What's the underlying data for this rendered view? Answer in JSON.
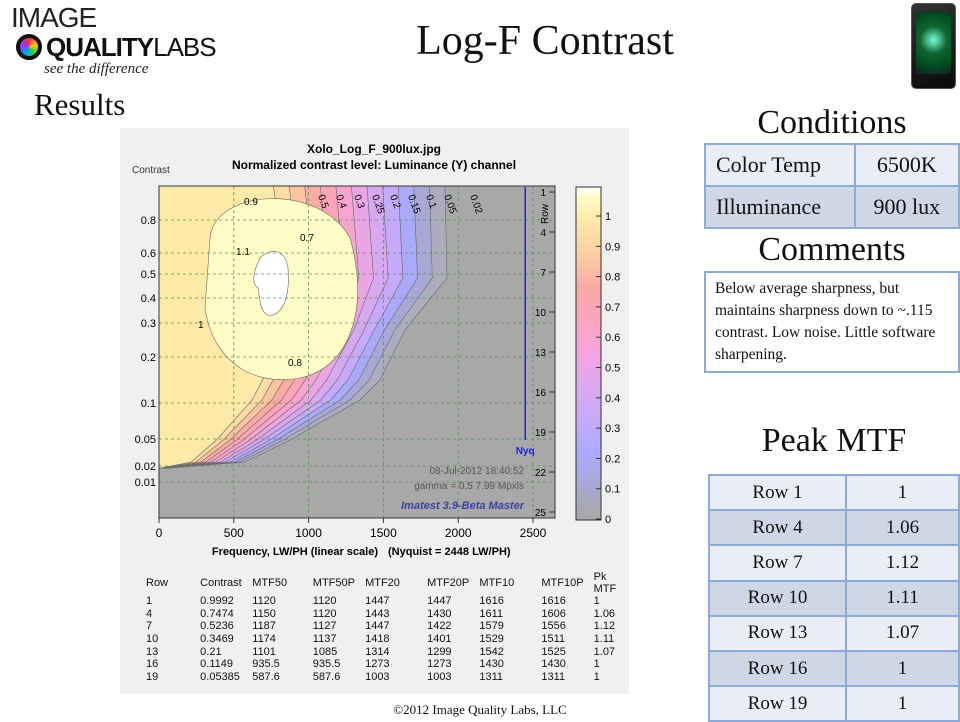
{
  "logo": {
    "line1": "IMAGE",
    "line2a": "QUALITY",
    "line2b": "LABS",
    "tagline": "see the difference"
  },
  "title": "Log-F Contrast",
  "results_heading": "Results",
  "conditions": {
    "heading": "Conditions",
    "rows": [
      {
        "label": "Color Temp",
        "value": "6500K"
      },
      {
        "label": "Illuminance",
        "value": "900 lux"
      }
    ]
  },
  "comments": {
    "heading": "Comments",
    "text": "Below average sharpness, but maintains sharpness down to ~.115 contrast. Low noise. Little software sharpening."
  },
  "peak_mtf": {
    "heading": "Peak MTF",
    "rows": [
      {
        "row": "Row 1",
        "value": "1"
      },
      {
        "row": "Row 4",
        "value": "1.06"
      },
      {
        "row": "Row 7",
        "value": "1.12"
      },
      {
        "row": "Row 10",
        "value": "1.11"
      },
      {
        "row": "Row 13",
        "value": "1.07"
      },
      {
        "row": "Row 16",
        "value": "1"
      },
      {
        "row": "Row 19",
        "value": "1"
      }
    ]
  },
  "footer": "©2012 Image Quality Labs, LLC",
  "chart_data": {
    "type": "heatmap",
    "title": "Xolo_Log_F_900lux.jpg",
    "subtitle": "Normalized contrast level:  Luminance (Y) channel",
    "ylabel": "Contrast",
    "xlabel": "Frequency, LW/PH (linear scale)",
    "xnote": "(Nyquist = 2448 LW/PH)",
    "x_ticks": [
      "0",
      "500",
      "1000",
      "1500",
      "2000",
      "2500"
    ],
    "y_ticks": [
      "0.8",
      "0.6",
      "0.5",
      "0.4",
      "0.3",
      "0.2",
      "0.1",
      "0.05",
      "0.02",
      "0.01"
    ],
    "row_axis_label": "Row",
    "row_ticks": [
      "1",
      "4",
      "7",
      "10",
      "13",
      "16",
      "19",
      "22",
      "25"
    ],
    "nyquist": 2448,
    "nyq_label": "Nyq",
    "colorbar_ticks": [
      "1",
      "0.9",
      "0.8",
      "0.7",
      "0.6",
      "0.5",
      "0.4",
      "0.3",
      "0.2",
      "0.1",
      "0"
    ],
    "contour_labels": [
      "1.1",
      "1",
      "0.9",
      "0.8",
      "0.7",
      "0.5",
      "0.4",
      "0.3",
      "0.25",
      "0.2",
      "0.15",
      "0.1",
      "0.05",
      "0.02"
    ],
    "timestamp": "08-Jul-2012 18:40:52",
    "gamma_info": "gamma = 0.5   7.99 Mpxls",
    "software": "Imatest 3.9-Beta Master",
    "table": {
      "columns": [
        "Row",
        "Contrast",
        "MTF50",
        "MTF50P",
        "MTF20",
        "MTF20P",
        "MTF10",
        "MTF10P",
        "Pk MTF"
      ],
      "rows": [
        [
          "1",
          "0.9992",
          "1120",
          "1120",
          "1447",
          "1447",
          "1616",
          "1616",
          "1"
        ],
        [
          "4",
          "0.7474",
          "1150",
          "1120",
          "1443",
          "1430",
          "1611",
          "1606",
          "1.06"
        ],
        [
          "7",
          "0.5236",
          "1187",
          "1127",
          "1447",
          "1422",
          "1579",
          "1556",
          "1.12"
        ],
        [
          "10",
          "0.3469",
          "1174",
          "1137",
          "1418",
          "1401",
          "1529",
          "1511",
          "1.11"
        ],
        [
          "13",
          "0.21",
          "1101",
          "1085",
          "1314",
          "1299",
          "1542",
          "1525",
          "1.07"
        ],
        [
          "16",
          "0.1149",
          "935.5",
          "935.5",
          "1273",
          "1273",
          "1430",
          "1430",
          "1"
        ],
        [
          "19",
          "0.05385",
          "587.6",
          "587.6",
          "1003",
          "1003",
          "1311",
          "1311",
          "1"
        ]
      ]
    }
  },
  "colors": {
    "table_border": "#8eaad8",
    "row_light": "#e9edf5",
    "row_dark": "#cfd7e7",
    "nyq": "#2020e0"
  }
}
